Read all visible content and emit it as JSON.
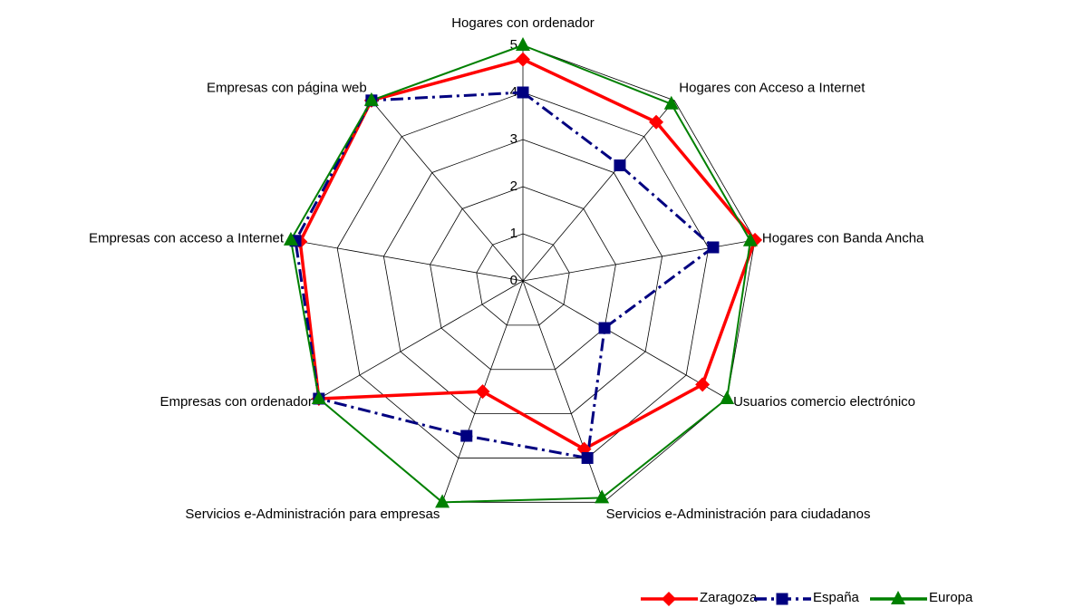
{
  "chart_data": {
    "type": "radar",
    "categories": [
      "Hogares con ordenador",
      "Hogares con Acceso a Internet",
      "Hogares con Banda Ancha",
      "Usuarios comercio electrónico",
      "Servicios e-Administración para ciudadanos",
      "Servicios e-Administración para empresas",
      "Empresas con ordenador",
      "Empresas con acceso a Internet",
      "Empresas con página web"
    ],
    "series": [
      {
        "name": "Zaragoza",
        "color": "#ff0000",
        "marker": "diamond",
        "dash": "solid",
        "values": [
          4.7,
          4.4,
          5,
          4.4,
          3.8,
          2.5,
          5,
          4.8,
          5
        ]
      },
      {
        "name": "España",
        "color": "#000080",
        "marker": "square",
        "dash": "dashdot",
        "values": [
          4,
          3.2,
          4.1,
          2,
          4,
          3.5,
          5,
          4.9,
          5
        ]
      },
      {
        "name": "Europa",
        "color": "#008000",
        "marker": "triangle",
        "dash": "solid",
        "values": [
          5,
          4.9,
          4.9,
          5,
          4.9,
          5,
          5,
          5,
          5
        ]
      }
    ],
    "ylim": [
      0,
      5
    ],
    "yticks": [
      0,
      1,
      2,
      3,
      4,
      5
    ],
    "grid": true,
    "legend": "bottom-right"
  }
}
